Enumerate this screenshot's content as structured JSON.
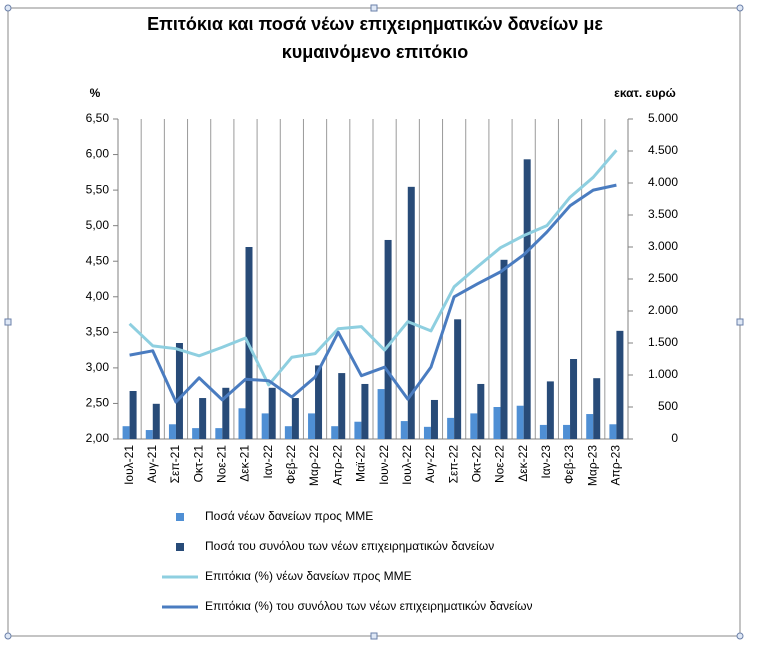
{
  "chart_data": {
    "type": "combo",
    "title": "Επιτόκια και ποσά νέων επιχειρηματικών δανείων με κυμαινόμενο επιτόκιο",
    "y_label": "%",
    "y2_label": "εκατ. ευρώ",
    "categories": [
      "Ιουλ-21",
      "Αυγ-21",
      "Σεπ-21",
      "Οκτ-21",
      "Νοε-21",
      "Δεκ-21",
      "Ιαν-22",
      "Φεβ-22",
      "Μαρ-22",
      "Απρ-22",
      "Μαϊ-22",
      "Ιουν-22",
      "Ιουλ-22",
      "Αυγ-22",
      "Σεπ-22",
      "Οκτ-22",
      "Νοε-22",
      "Δεκ-22",
      "Ιαν-23",
      "Φεβ-23",
      "Μαρ-23",
      "Απρ-23"
    ],
    "series": [
      {
        "name": "Ποσά νέων δανείων προς ΜΜΕ",
        "type": "bar",
        "axis": "y2",
        "color": "#4f8fd4",
        "values": [
          200,
          140,
          230,
          170,
          170,
          480,
          400,
          200,
          400,
          200,
          270,
          780,
          280,
          190,
          330,
          400,
          500,
          520,
          220,
          220,
          390,
          230
        ]
      },
      {
        "name": "Ποσά του συνόλου των νέων επιχειρηματικών δανείων",
        "type": "bar",
        "axis": "y2",
        "color": "#284b78",
        "values": [
          750,
          550,
          1500,
          640,
          800,
          3000,
          800,
          640,
          1150,
          1030,
          860,
          3110,
          3940,
          610,
          1870,
          860,
          2800,
          4370,
          900,
          1250,
          950,
          1690
        ]
      },
      {
        "name": "Επιτόκια (%) νέων δανείων προς ΜΜΕ",
        "type": "line",
        "color": "#8ecfe0",
        "values": [
          3.62,
          3.31,
          3.27,
          3.17,
          3.29,
          3.42,
          2.76,
          3.15,
          3.2,
          3.55,
          3.58,
          3.25,
          3.65,
          3.52,
          4.14,
          4.42,
          4.69,
          4.86,
          5.0,
          5.4,
          5.68,
          6.06
        ]
      },
      {
        "name": "Επιτόκια (%) του συνόλου των νέων επιχειρηματικών δανείων",
        "type": "line",
        "color": "#4a7cc0",
        "values": [
          3.18,
          3.24,
          2.52,
          2.86,
          2.55,
          2.84,
          2.82,
          2.59,
          2.87,
          3.5,
          2.89,
          3.01,
          2.56,
          3.01,
          4.0,
          4.18,
          4.35,
          4.59,
          4.91,
          5.28,
          5.5,
          5.57
        ]
      }
    ],
    "ylim": [
      2,
      6.5
    ],
    "yticks": [
      {
        "value": 2,
        "label": "2,00"
      },
      {
        "value": 2.5,
        "label": "2,50"
      },
      {
        "value": 3,
        "label": "3,00"
      },
      {
        "value": 3.5,
        "label": "3,50"
      },
      {
        "value": 4,
        "label": "4,00"
      },
      {
        "value": 4.5,
        "label": "4,50"
      },
      {
        "value": 5,
        "label": "5,00"
      },
      {
        "value": 5.5,
        "label": "5,50"
      },
      {
        "value": 6,
        "label": "6,00"
      },
      {
        "value": 6.5,
        "label": "6,50"
      }
    ],
    "y2lim": [
      0,
      5000
    ],
    "y2ticks": [
      0,
      500,
      {
        "value": 1000,
        "label": "1.000"
      },
      {
        "value": 1500,
        "label": "1.500"
      },
      {
        "value": 2000,
        "label": "2.000"
      },
      {
        "value": 2500,
        "label": "2.500"
      },
      {
        "value": 3000,
        "label": "3.000"
      },
      {
        "value": 3500,
        "label": "3.500"
      },
      {
        "value": 4000,
        "label": "4.000"
      },
      {
        "value": 4500,
        "label": "4.500"
      },
      {
        "value": 5000,
        "label": "5.000"
      }
    ],
    "grid": "vertical",
    "legend": "bottom"
  }
}
